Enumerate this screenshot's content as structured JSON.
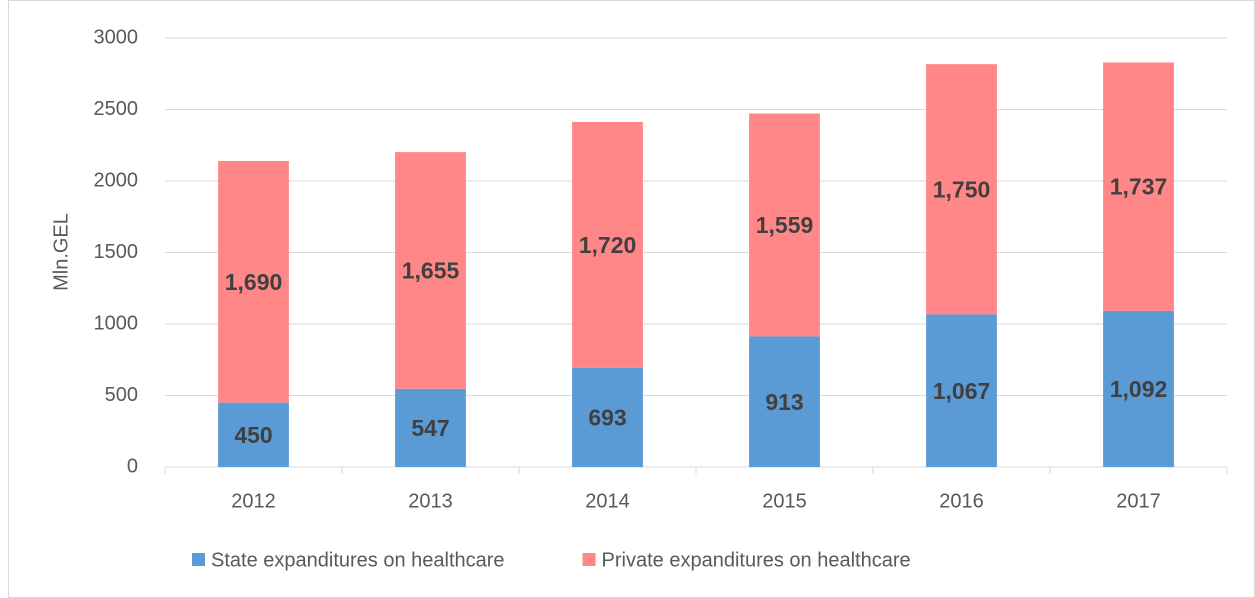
{
  "chart_data": {
    "type": "stacked_bar",
    "y_axis_label": "Mln.GEL",
    "categories": [
      "2012",
      "2013",
      "2014",
      "2015",
      "2016",
      "2017"
    ],
    "series": [
      {
        "name": "State expanditures on healthcare",
        "color": "#5b9bd5",
        "values": [
          450,
          547,
          693,
          913,
          1067,
          1092
        ],
        "value_labels": [
          "450",
          "547",
          "693",
          "913",
          "1,067",
          "1,092"
        ]
      },
      {
        "name": "Private expanditures on healthcare",
        "color": "#ff8787",
        "values": [
          1690,
          1655,
          1720,
          1559,
          1750,
          1737
        ],
        "value_labels": [
          "1,690",
          "1,655",
          "1,720",
          "1,559",
          "1,750",
          "1,737"
        ]
      }
    ],
    "ylim": [
      0,
      3000
    ],
    "yticks": [
      0,
      500,
      1000,
      1500,
      2000,
      2500,
      3000
    ],
    "grid": true,
    "legend": "bottom"
  }
}
